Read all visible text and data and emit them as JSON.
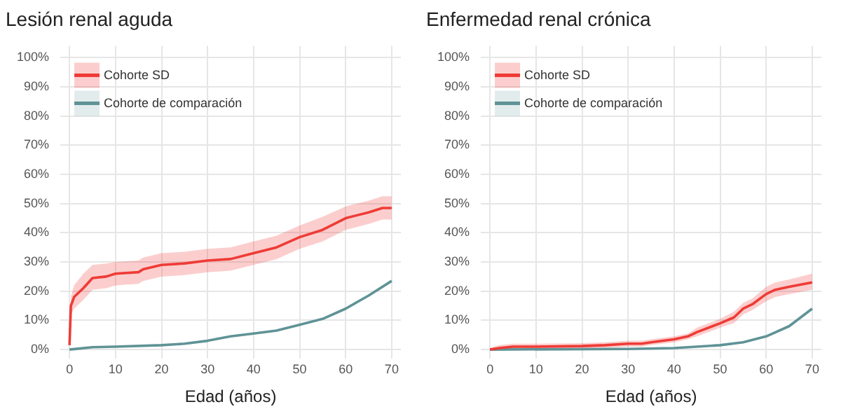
{
  "chart_data": [
    {
      "type": "line",
      "title": "Lesión renal aguda",
      "xlabel": "Edad (años)",
      "xlim": [
        -2,
        72
      ],
      "xticks": [
        0,
        10,
        20,
        30,
        40,
        50,
        60,
        70
      ],
      "ylim": [
        -3,
        104
      ],
      "yticks": [
        {
          "value": 0,
          "label": "0%"
        },
        {
          "value": 10,
          "label": "10%"
        },
        {
          "value": 20,
          "label": "20%"
        },
        {
          "value": 30,
          "label": "30%"
        },
        {
          "value": 40,
          "label": "40%"
        },
        {
          "value": 50,
          "label": "50%"
        },
        {
          "value": 60,
          "label": "60%"
        },
        {
          "value": 70,
          "label": "70%"
        },
        {
          "value": 80,
          "label": "80%"
        },
        {
          "value": 90,
          "label": "90%"
        },
        {
          "value": 100,
          "label": "100%"
        }
      ],
      "grid": true,
      "legend": "top left",
      "marker": "none",
      "series": [
        {
          "name": "Cohorte SD",
          "color": "#ef3b36",
          "x": [
            0,
            0.3,
            1,
            3,
            5,
            8,
            10,
            15,
            16,
            20,
            25,
            30,
            35,
            40,
            45,
            50,
            55,
            60,
            65,
            68,
            70
          ],
          "values": [
            1.5,
            15,
            18,
            21,
            24.5,
            25,
            26,
            26.5,
            27.5,
            29,
            29.5,
            30.5,
            31,
            33,
            35,
            38.5,
            41,
            45,
            47,
            48.5,
            48.5
          ],
          "lower": [
            0.5,
            12,
            14,
            17,
            20.5,
            21,
            22,
            22.5,
            23.5,
            25,
            25.5,
            26.5,
            27,
            29,
            31,
            34.5,
            37,
            41,
            43,
            44.5,
            44.5
          ],
          "upper": [
            3,
            18,
            22,
            26,
            29,
            29.5,
            30,
            30.5,
            31.5,
            33,
            33.5,
            34.5,
            35,
            37,
            39,
            42.5,
            45.5,
            49,
            51,
            52.5,
            52.5
          ]
        },
        {
          "name": "Cohorte de comparación",
          "color": "#5f9396",
          "x": [
            0,
            5,
            10,
            20,
            25,
            30,
            35,
            40,
            45,
            50,
            55,
            60,
            65,
            70
          ],
          "values": [
            0,
            0.8,
            1,
            1.5,
            2,
            3,
            4.5,
            5.5,
            6.5,
            8.5,
            10.5,
            14,
            18.5,
            23.5
          ]
        }
      ]
    },
    {
      "type": "line",
      "title": "Enfermedad renal crónica",
      "xlabel": "Edad (años)",
      "xlim": [
        -2,
        72
      ],
      "xticks": [
        0,
        10,
        20,
        30,
        40,
        50,
        60,
        70
      ],
      "ylim": [
        -3,
        104
      ],
      "yticks": [
        {
          "value": 0,
          "label": "0%"
        },
        {
          "value": 10,
          "label": "10%"
        },
        {
          "value": 20,
          "label": "20%"
        },
        {
          "value": 30,
          "label": "30%"
        },
        {
          "value": 40,
          "label": "40%"
        },
        {
          "value": 50,
          "label": "50%"
        },
        {
          "value": 60,
          "label": "60%"
        },
        {
          "value": 70,
          "label": "70%"
        },
        {
          "value": 80,
          "label": "80%"
        },
        {
          "value": 90,
          "label": "90%"
        },
        {
          "value": 100,
          "label": "100%"
        }
      ],
      "grid": true,
      "legend": "top left",
      "marker": "none",
      "series": [
        {
          "name": "Cohorte SD",
          "color": "#ef3b36",
          "x": [
            0,
            2,
            5,
            10,
            20,
            25,
            30,
            33,
            35,
            40,
            43,
            45,
            50,
            53,
            55,
            57,
            60,
            62,
            65,
            70
          ],
          "values": [
            0,
            0.5,
            1,
            1,
            1.2,
            1.5,
            2,
            2,
            2.5,
            3.5,
            4.5,
            6,
            9,
            11,
            14,
            15.5,
            19,
            20.5,
            21.5,
            23
          ],
          "lower": [
            0,
            0,
            0,
            0,
            0.2,
            0.5,
            1,
            1,
            1.5,
            2.5,
            3.5,
            4.5,
            7.5,
            9,
            12,
            13.5,
            16.5,
            18,
            19,
            20.5
          ],
          "upper": [
            0.5,
            1.5,
            2,
            2,
            2.2,
            2.5,
            3,
            3,
            3.5,
            4.5,
            5.5,
            7.5,
            10.5,
            13,
            16,
            17.5,
            21.5,
            23,
            24,
            26
          ]
        },
        {
          "name": "Cohorte de comparación",
          "color": "#5f9396",
          "x": [
            0,
            30,
            40,
            50,
            55,
            60,
            65,
            70
          ],
          "values": [
            0,
            0.2,
            0.5,
            1.5,
            2.5,
            4.5,
            8,
            14
          ]
        }
      ]
    }
  ]
}
